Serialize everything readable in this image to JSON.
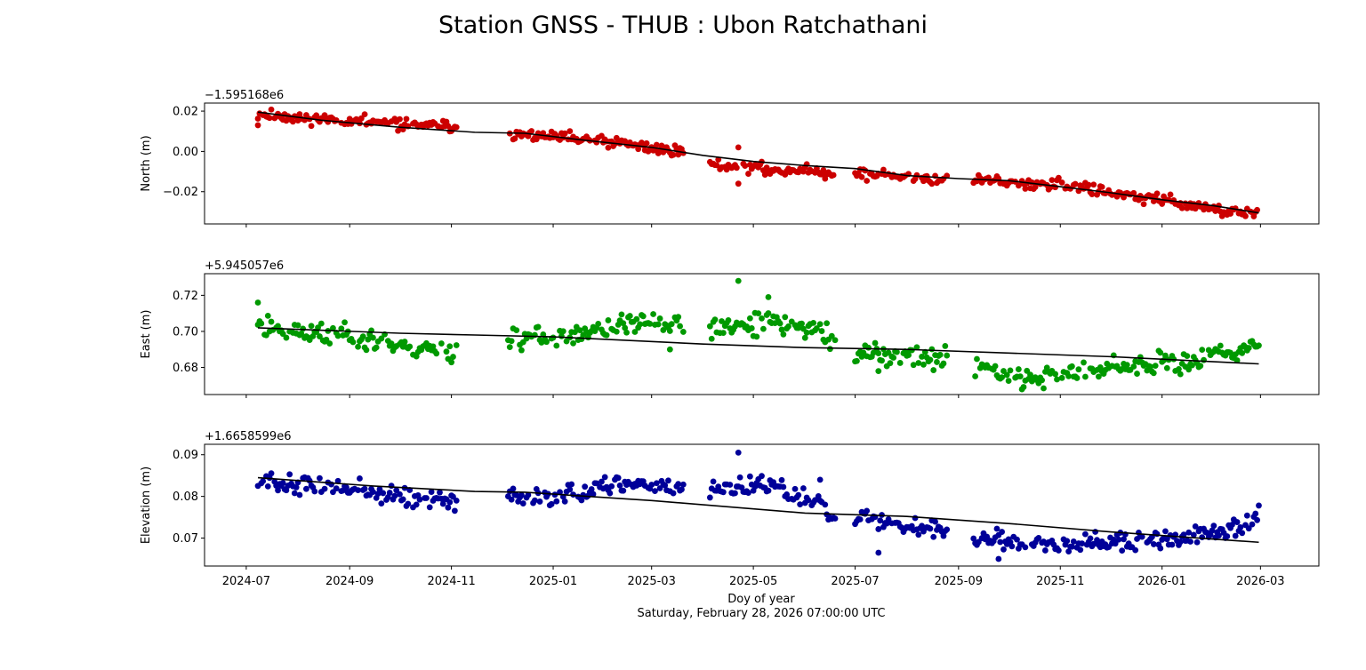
{
  "figure": {
    "title": "Station GNSS - THUB : Ubon Ratchathani",
    "xlabel": "Doy of year",
    "xlabel2": "Saturday, February 28, 2026 07:00:00 UTC"
  },
  "chart_data": [
    {
      "type": "scatter",
      "ylabel": "North (m)",
      "offset_label": "−1.595168e6",
      "color": "#cc0000",
      "ylim": [
        -0.036,
        0.024
      ],
      "yticks": [
        0.02,
        0.0,
        -0.02
      ],
      "ytick_labels": [
        "0.02",
        "0.00",
        "−0.02"
      ],
      "x_range": [
        "2024-07-08",
        "2026-02-28"
      ],
      "y_anchors": [
        [
          "2024-07-08",
          0.0185
        ],
        [
          "2024-09-01",
          0.015
        ],
        [
          "2024-11-04",
          0.012
        ],
        [
          "2024-12-05",
          0.009
        ],
        [
          "2025-01-15",
          0.006
        ],
        [
          "2025-03-20",
          0.0
        ],
        [
          "2025-04-05",
          -0.006
        ],
        [
          "2025-05-10",
          -0.009
        ],
        [
          "2025-06-15",
          -0.01
        ],
        [
          "2025-07-01",
          -0.011
        ],
        [
          "2025-08-15",
          -0.014
        ],
        [
          "2025-09-10",
          -0.014
        ],
        [
          "2025-11-01",
          -0.017
        ],
        [
          "2026-01-01",
          -0.024
        ],
        [
          "2026-02-28",
          -0.032
        ]
      ],
      "trend": [
        [
          "2024-07-08",
          0.0195
        ],
        [
          "2024-08-15",
          0.0155
        ],
        [
          "2024-10-01",
          0.012
        ],
        [
          "2024-11-15",
          0.0095
        ],
        [
          "2024-12-15",
          0.009
        ],
        [
          "2025-01-15",
          0.006
        ],
        [
          "2025-03-01",
          0.002
        ],
        [
          "2025-04-01",
          -0.002
        ],
        [
          "2025-05-01",
          -0.005
        ],
        [
          "2025-06-01",
          -0.007
        ],
        [
          "2025-07-01",
          -0.0085
        ],
        [
          "2025-08-01",
          -0.012
        ],
        [
          "2025-09-01",
          -0.0135
        ],
        [
          "2025-10-01",
          -0.0145
        ],
        [
          "2025-11-01",
          -0.0175
        ],
        [
          "2025-12-01",
          -0.0205
        ],
        [
          "2026-01-01",
          -0.024
        ],
        [
          "2026-02-01",
          -0.027
        ],
        [
          "2026-02-28",
          -0.0305
        ]
      ],
      "outliers": [
        [
          "2024-07-08",
          0.013
        ],
        [
          "2025-04-22",
          0.002
        ],
        [
          "2025-04-22",
          -0.016
        ],
        [
          "2024-11-01",
          0.011
        ]
      ],
      "noise": 0.0014,
      "seed": 11
    },
    {
      "type": "scatter",
      "ylabel": "East (m)",
      "offset_label": "+5.945057e6",
      "color": "#009900",
      "ylim": [
        0.665,
        0.732
      ],
      "yticks": [
        0.72,
        0.7,
        0.68
      ],
      "ytick_labels": [
        "0.72",
        "0.70",
        "0.68"
      ],
      "x_range": [
        "2024-07-08",
        "2026-02-28"
      ],
      "y_anchors": [
        [
          "2024-07-08",
          0.704
        ],
        [
          "2024-08-01",
          0.699
        ],
        [
          "2024-09-01",
          0.698
        ],
        [
          "2024-10-15",
          0.69
        ],
        [
          "2024-11-04",
          0.69
        ],
        [
          "2024-12-05",
          0.696
        ],
        [
          "2025-01-15",
          0.697
        ],
        [
          "2025-02-15",
          0.705
        ],
        [
          "2025-03-20",
          0.704
        ],
        [
          "2025-04-05",
          0.701
        ],
        [
          "2025-05-10",
          0.704
        ],
        [
          "2025-06-05",
          0.702
        ],
        [
          "2025-06-15",
          0.697
        ],
        [
          "2025-07-01",
          0.688
        ],
        [
          "2025-08-25",
          0.685
        ],
        [
          "2025-09-10",
          0.68
        ],
        [
          "2025-10-15",
          0.675
        ],
        [
          "2025-12-01",
          0.678
        ],
        [
          "2026-01-01",
          0.682
        ],
        [
          "2026-02-10",
          0.688
        ],
        [
          "2026-02-28",
          0.695
        ]
      ],
      "trend": [
        [
          "2024-07-08",
          0.702
        ],
        [
          "2024-10-01",
          0.699
        ],
        [
          "2024-11-15",
          0.698
        ],
        [
          "2025-01-01",
          0.697
        ],
        [
          "2025-04-01",
          0.693
        ],
        [
          "2025-06-01",
          0.691
        ],
        [
          "2025-08-01",
          0.69
        ],
        [
          "2025-10-01",
          0.688
        ],
        [
          "2025-12-01",
          0.686
        ],
        [
          "2026-02-28",
          0.682
        ]
      ],
      "outliers": [
        [
          "2025-04-22",
          0.728
        ],
        [
          "2025-05-10",
          0.719
        ],
        [
          "2024-07-08",
          0.716
        ],
        [
          "2025-03-12",
          0.69
        ],
        [
          "2025-07-15",
          0.678
        ]
      ],
      "noise": 0.0032,
      "seed": 23
    },
    {
      "type": "scatter",
      "ylabel": "Elevation (m)",
      "offset_label": "+1.6658599e6",
      "color": "#000099",
      "ylim": [
        0.0633,
        0.0925
      ],
      "yticks": [
        0.09,
        0.08,
        0.07
      ],
      "ytick_labels": [
        "0.09",
        "0.08",
        "0.07"
      ],
      "x_range": [
        "2024-07-08",
        "2026-02-28"
      ],
      "y_anchors": [
        [
          "2024-07-08",
          0.084
        ],
        [
          "2024-08-15",
          0.082
        ],
        [
          "2024-09-15",
          0.081
        ],
        [
          "2024-10-15",
          0.079
        ],
        [
          "2024-11-04",
          0.0785
        ],
        [
          "2024-12-05",
          0.08
        ],
        [
          "2025-01-01",
          0.08
        ],
        [
          "2025-02-01",
          0.082
        ],
        [
          "2025-03-01",
          0.083
        ],
        [
          "2025-03-25",
          0.082
        ],
        [
          "2025-04-05",
          0.081
        ],
        [
          "2025-05-01",
          0.083
        ],
        [
          "2025-06-10",
          0.079
        ],
        [
          "2025-06-15",
          0.076
        ],
        [
          "2025-07-01",
          0.075
        ],
        [
          "2025-08-01",
          0.073
        ],
        [
          "2025-08-25",
          0.072
        ],
        [
          "2025-09-10",
          0.07
        ],
        [
          "2025-10-15",
          0.069
        ],
        [
          "2025-12-10",
          0.069
        ],
        [
          "2026-01-15",
          0.07
        ],
        [
          "2026-02-10",
          0.072
        ],
        [
          "2026-02-28",
          0.075
        ]
      ],
      "trend": [
        [
          "2024-07-08",
          0.0845
        ],
        [
          "2024-09-15",
          0.0825
        ],
        [
          "2024-11-15",
          0.0812
        ],
        [
          "2024-12-15",
          0.081
        ],
        [
          "2025-03-01",
          0.079
        ],
        [
          "2025-06-01",
          0.076
        ],
        [
          "2025-08-01",
          0.0752
        ],
        [
          "2025-10-01",
          0.0735
        ],
        [
          "2025-12-01",
          0.0715
        ],
        [
          "2026-02-28",
          0.069
        ]
      ],
      "outliers": [
        [
          "2025-04-22",
          0.0905
        ],
        [
          "2025-07-15",
          0.0665
        ],
        [
          "2025-09-25",
          0.065
        ],
        [
          "2025-06-10",
          0.084
        ]
      ],
      "noise": 0.0011,
      "seed": 37
    }
  ],
  "x_axis": {
    "ticks": [
      "2024-07-01",
      "2024-09-01",
      "2024-11-01",
      "2025-01-01",
      "2025-03-01",
      "2025-05-01",
      "2025-07-01",
      "2025-09-01",
      "2025-11-01",
      "2026-01-01",
      "2026-03-01"
    ],
    "tick_labels": [
      "2024-07",
      "2024-09",
      "2024-11",
      "2025-01",
      "2025-03",
      "2025-05",
      "2025-07",
      "2025-09",
      "2025-11",
      "2026-01",
      "2026-03"
    ],
    "xlim": [
      "2024-06-06",
      "2026-04-05"
    ],
    "data_gaps": [
      [
        "2024-11-05",
        "2024-12-04"
      ],
      [
        "2025-03-21",
        "2025-04-04"
      ],
      [
        "2025-06-20",
        "2025-06-30"
      ],
      [
        "2025-08-26",
        "2025-09-09"
      ]
    ]
  }
}
